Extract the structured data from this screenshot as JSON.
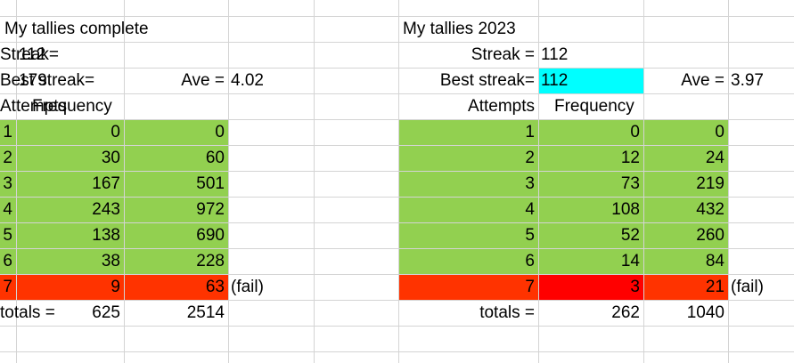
{
  "colors": {
    "green": "#92d050",
    "orange_red": "#ff3300",
    "red": "#ff0000",
    "cyan": "#00ffff",
    "gridline": "#d4d4d4"
  },
  "left": {
    "title": "My tallies complete",
    "streak_label": "Streak=",
    "streak_value": "112",
    "best_label": "Best streak=",
    "best_value": "179",
    "ave_label": "Ave =",
    "ave_value": "4.02",
    "attempts_header": "Attempts",
    "frequency_header": "Frequency",
    "rows": [
      {
        "attempt": "1",
        "freq": "0",
        "product": "0"
      },
      {
        "attempt": "2",
        "freq": "30",
        "product": "60"
      },
      {
        "attempt": "3",
        "freq": "167",
        "product": "501"
      },
      {
        "attempt": "4",
        "freq": "243",
        "product": "972"
      },
      {
        "attempt": "5",
        "freq": "138",
        "product": "690"
      },
      {
        "attempt": "6",
        "freq": "38",
        "product": "228"
      },
      {
        "attempt": "7",
        "freq": "9",
        "product": "63",
        "note": "(fail)"
      }
    ],
    "totals_label": "totals =",
    "total_freq": "625",
    "total_product": "2514"
  },
  "right": {
    "title": "My tallies 2023",
    "streak_label": "Streak =",
    "streak_value": "112",
    "best_label": "Best streak=",
    "best_value": "112",
    "ave_label": "Ave =",
    "ave_value": "3.97",
    "attempts_header": "Attempts",
    "frequency_header": "Frequency",
    "rows": [
      {
        "attempt": "1",
        "freq": "0",
        "product": "0"
      },
      {
        "attempt": "2",
        "freq": "12",
        "product": "24"
      },
      {
        "attempt": "3",
        "freq": "73",
        "product": "219"
      },
      {
        "attempt": "4",
        "freq": "108",
        "product": "432"
      },
      {
        "attempt": "5",
        "freq": "52",
        "product": "260"
      },
      {
        "attempt": "6",
        "freq": "14",
        "product": "84"
      },
      {
        "attempt": "7",
        "freq": "3",
        "product": "21",
        "note": "(fail)"
      }
    ],
    "totals_label": "totals =",
    "total_freq": "262",
    "total_product": "1040"
  }
}
